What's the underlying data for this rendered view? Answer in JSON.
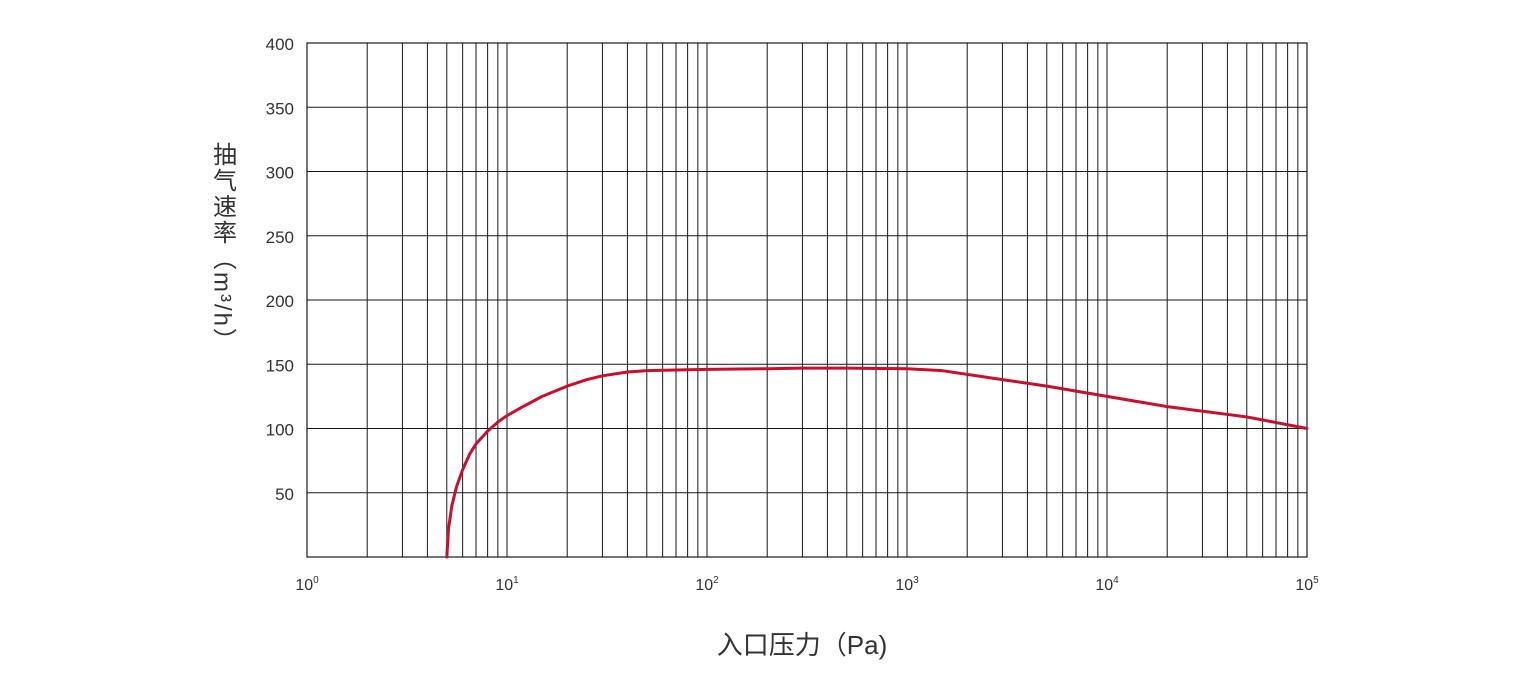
{
  "chart_data": {
    "type": "line",
    "title": "",
    "xlabel": "入口压力（Pa)",
    "ylabel": "抽气速率（m³/h）",
    "x_scale": "log",
    "xlim": [
      1,
      100000
    ],
    "ylim": [
      0,
      400
    ],
    "grid": true,
    "x_ticks": [
      {
        "base": "10",
        "exp": "0"
      },
      {
        "base": "10",
        "exp": "1"
      },
      {
        "base": "10",
        "exp": "2"
      },
      {
        "base": "10",
        "exp": "3"
      },
      {
        "base": "10",
        "exp": "4"
      },
      {
        "base": "10",
        "exp": "5"
      }
    ],
    "y_ticks": [
      "50",
      "100",
      "150",
      "200",
      "250",
      "300",
      "350",
      "400"
    ],
    "line_color": "#c8102e",
    "grid_color": "#1a1a1a",
    "series": [
      {
        "x": [
          5,
          5.1,
          5.3,
          5.6,
          6,
          6.5,
          7,
          8,
          9,
          10,
          12,
          15,
          20,
          25,
          30,
          40,
          50,
          70,
          100,
          200,
          300,
          500,
          1000,
          1500,
          3000,
          5000,
          10000,
          20000,
          50000,
          100000
        ],
        "values": [
          0,
          22,
          40,
          55,
          68,
          80,
          88,
          98,
          105,
          110,
          117,
          125,
          133,
          138,
          141,
          144,
          145,
          145.5,
          146,
          146.5,
          147,
          147,
          146.5,
          145,
          138,
          133,
          125,
          117,
          109,
          100
        ]
      }
    ]
  }
}
